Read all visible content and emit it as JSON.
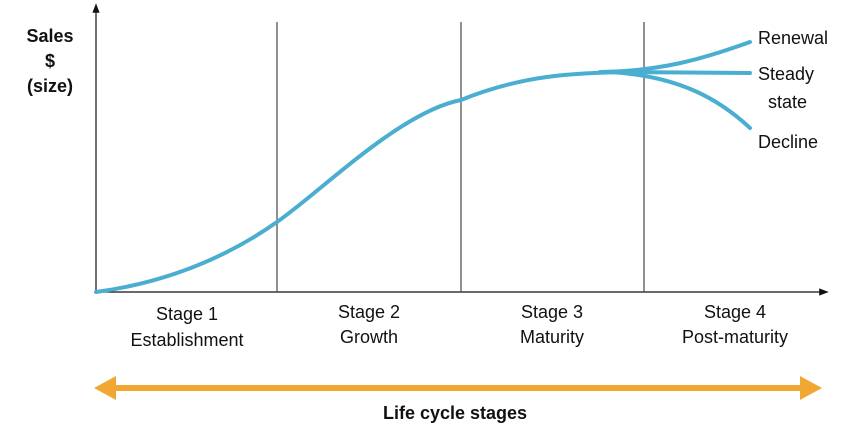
{
  "axis_label": {
    "lines": [
      "Sales",
      "$",
      "(size)"
    ]
  },
  "stages": [
    {
      "name": "Stage 1",
      "label": "Establishment"
    },
    {
      "name": "Stage 2",
      "label": "Growth"
    },
    {
      "name": "Stage 3",
      "label": "Maturity"
    },
    {
      "name": "Stage 4",
      "label": "Post-maturity"
    }
  ],
  "branches": {
    "renewal": "Renewal",
    "steady": [
      "Steady",
      "state"
    ],
    "decline": "Decline"
  },
  "footer": "Life cycle stages"
}
